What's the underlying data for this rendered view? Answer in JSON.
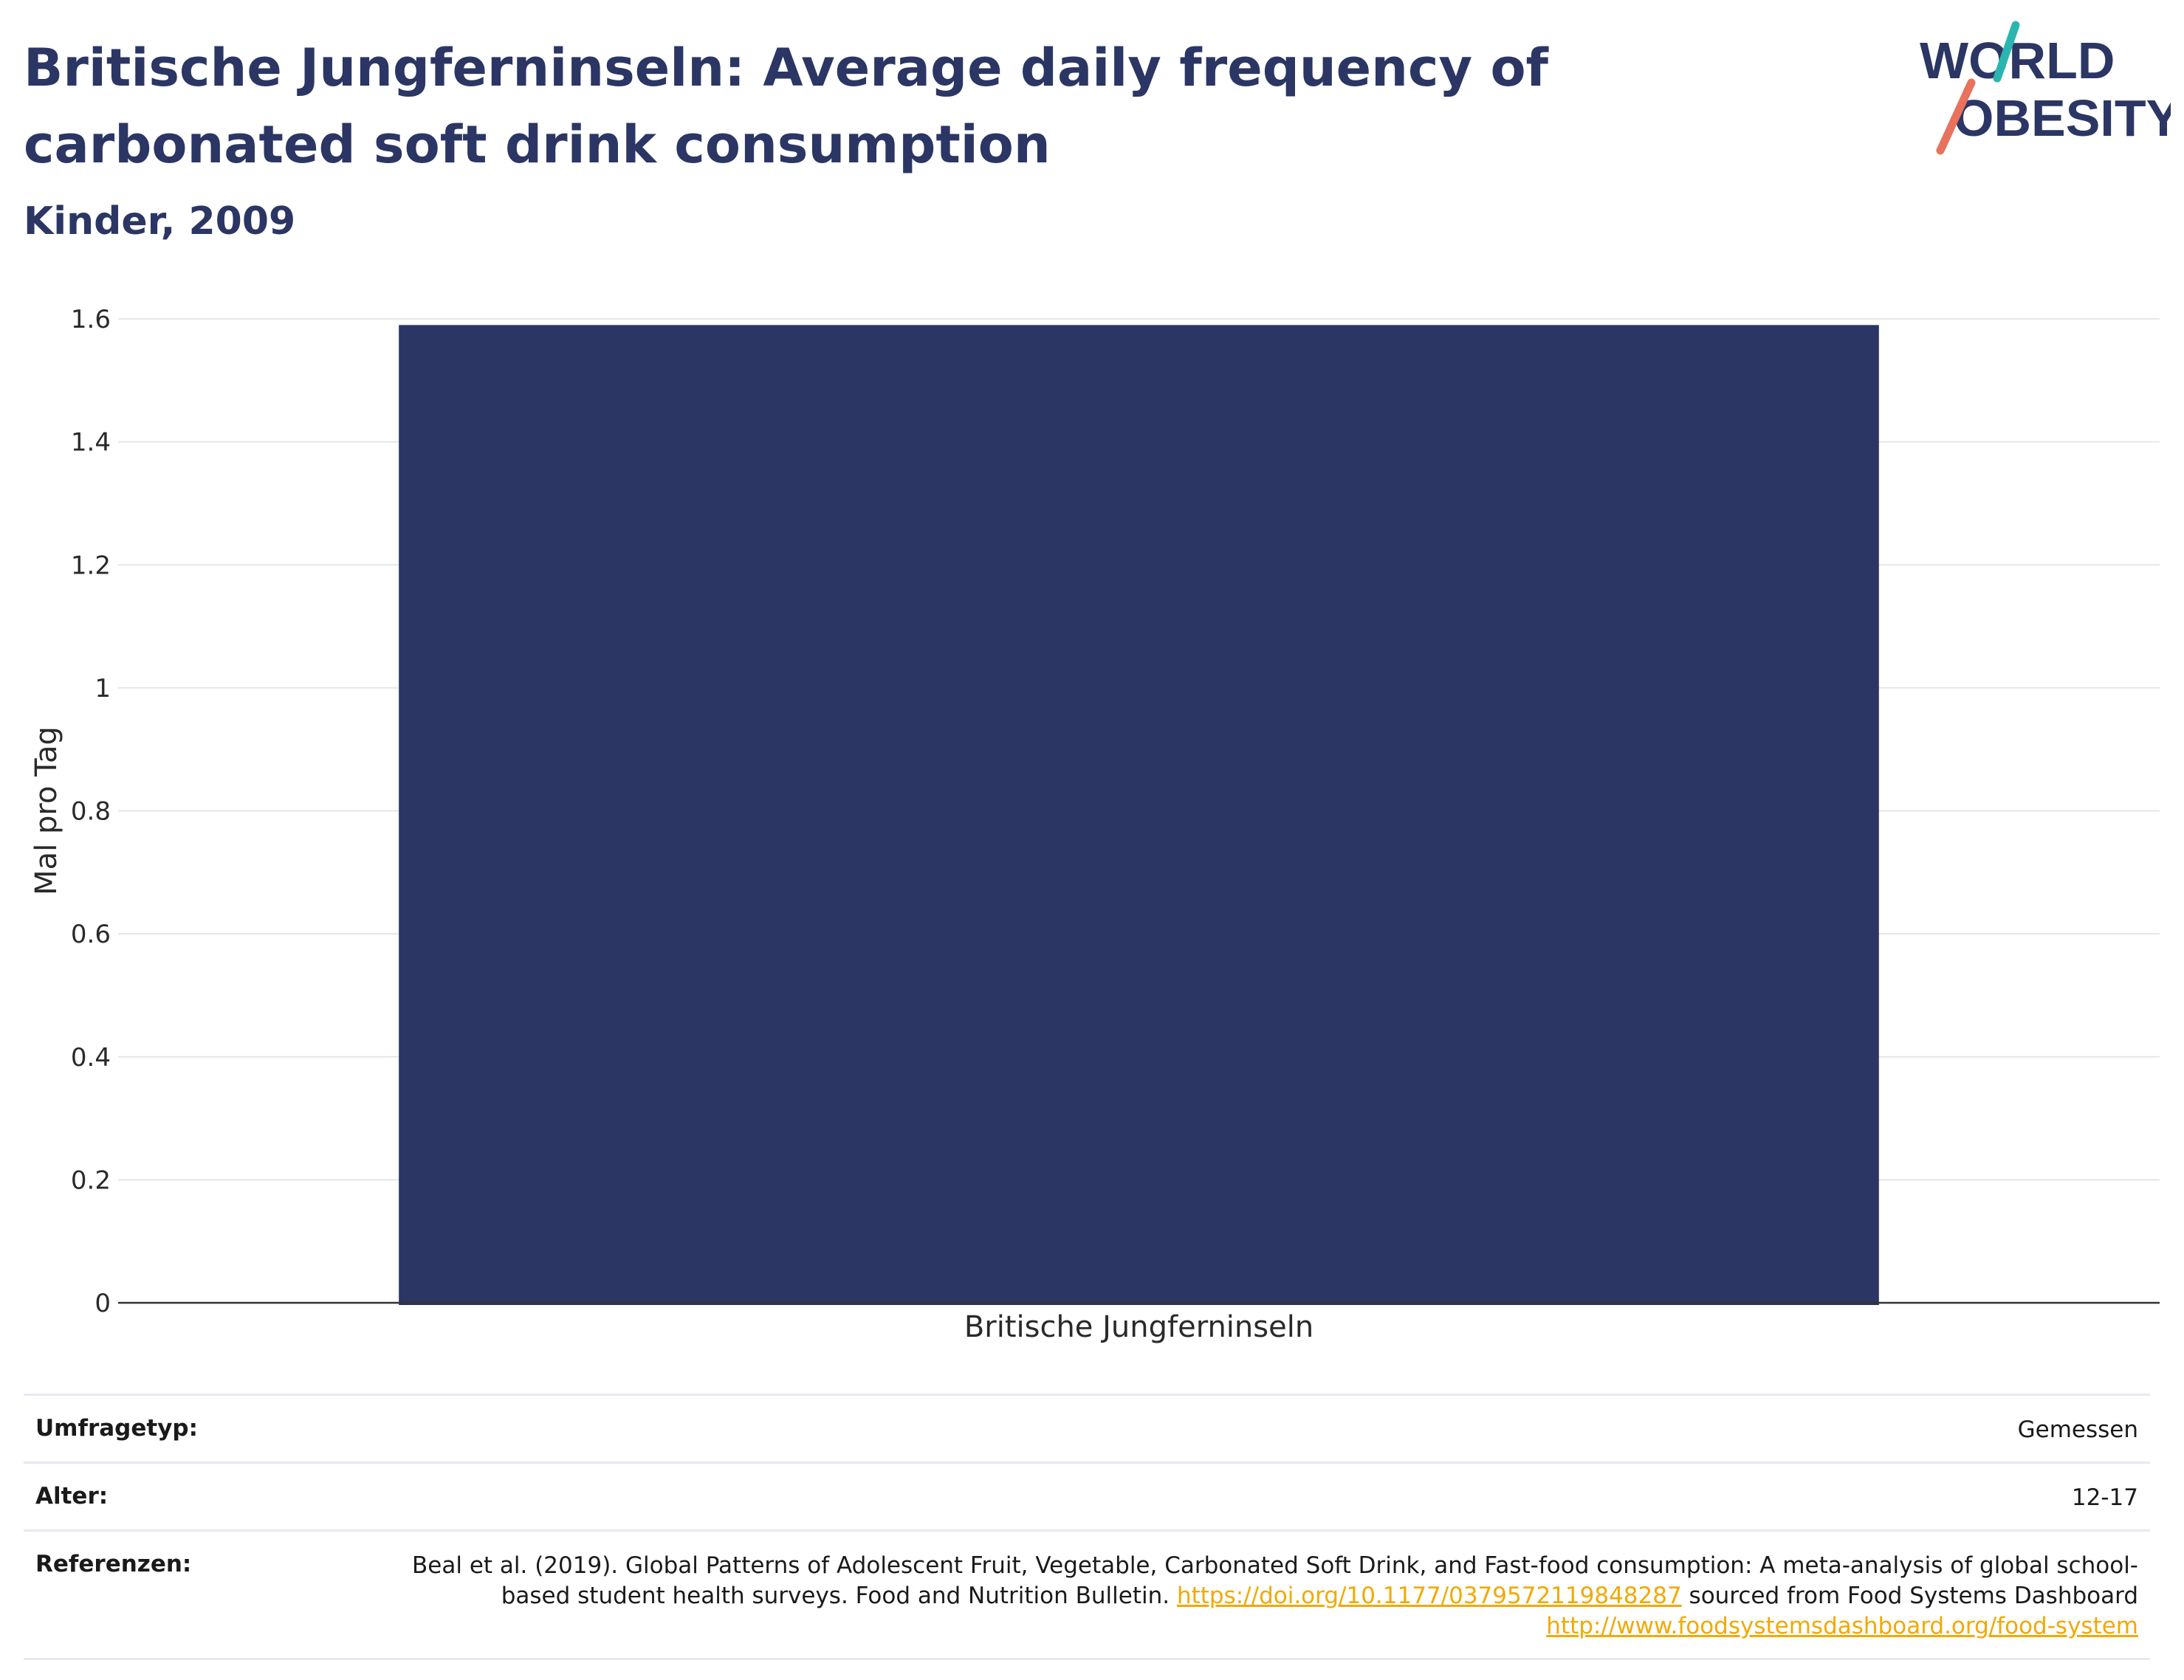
{
  "title": "Britische Jungferninseln: Average daily frequency of carbonated soft drink consumption",
  "subtitle": "Kinder, 2009",
  "logo": {
    "line1": "WORLD",
    "line2": "OBESITY",
    "colors": {
      "text": "#2b3664",
      "slash_teal": "#2bb5b0",
      "slash_coral": "#e8725c"
    }
  },
  "colors": {
    "bar": "#2b3664",
    "grid": "#e6e6ea",
    "axis": "#333333",
    "link": "#f2a900"
  },
  "chart_data": {
    "type": "bar",
    "categories": [
      "Britische Jungferninseln"
    ],
    "values": [
      1.59
    ],
    "ylabel": "Mal pro Tag",
    "xlabel": "",
    "ylim": [
      0,
      1.6
    ],
    "yticks": [
      0,
      0.2,
      0.4,
      0.6,
      0.8,
      1,
      1.2,
      1.4,
      1.6
    ],
    "ytick_labels": [
      "0",
      "0.2",
      "0.4",
      "0.6",
      "0.8",
      "1",
      "1.2",
      "1.4",
      "1.6"
    ],
    "grid": true
  },
  "meta": {
    "survey_type": {
      "label": "Umfragetyp:",
      "value": "Gemessen"
    },
    "age": {
      "label": "Alter:",
      "value": "12-17"
    },
    "references": {
      "label": "Referenzen:",
      "text1": "Beal et al. (2019). Global Patterns of Adolescent Fruit, Vegetable, Carbonated Soft Drink, and Fast-food consumption: A meta-analysis of global school-based student health surveys. Food and Nutrition Bulletin.",
      "link1": "https://doi.org/10.1177/0379572119848287",
      "text2": "sourced from Food Systems Dashboard",
      "link2": "http://www.foodsystemsdashboard.org/food-system"
    }
  }
}
